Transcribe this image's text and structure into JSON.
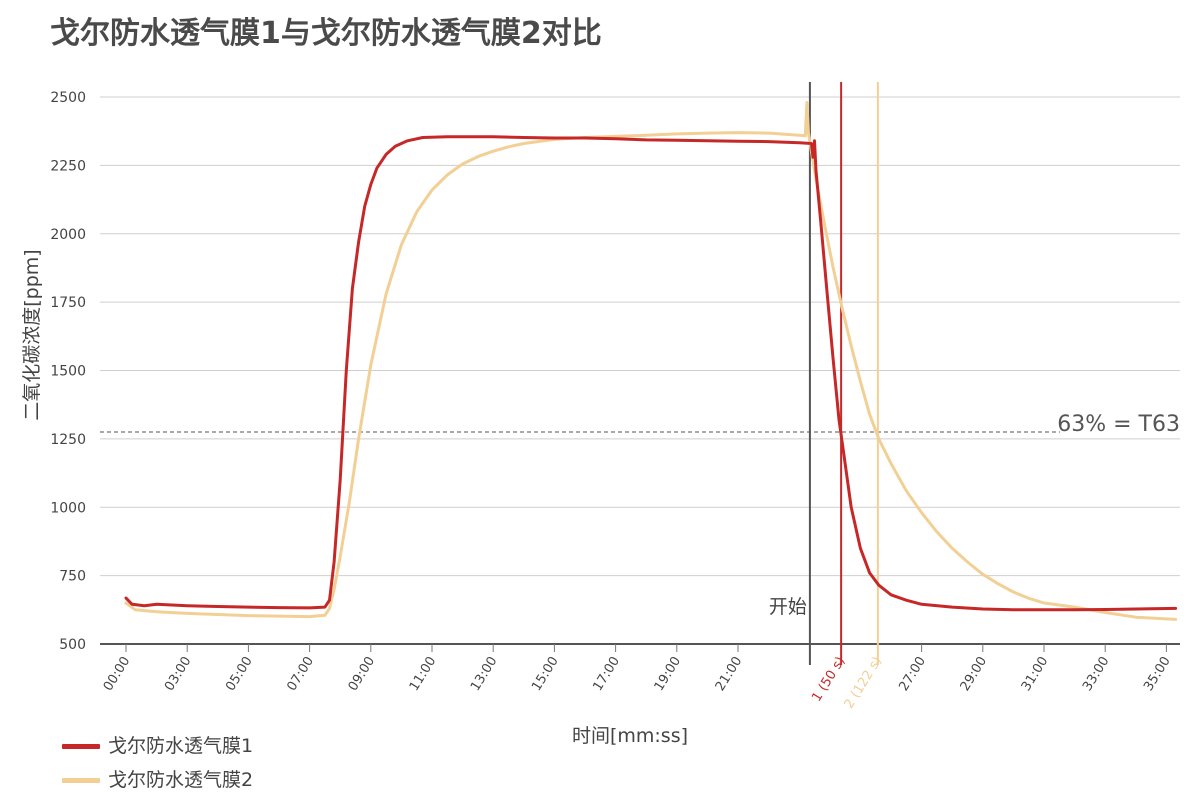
{
  "chart_data": {
    "type": "line",
    "title": "戈尔防水透气膜1与戈尔防水透气膜2对比",
    "xlabel": "时间[mm:ss]",
    "ylabel": "二氧化碳浓度[ppm]",
    "ylim": [
      500,
      2600
    ],
    "y_ticks": [
      500,
      750,
      1000,
      1250,
      1500,
      1750,
      2000,
      2250,
      2500
    ],
    "x_ticks": [
      {
        "label": "00:00",
        "x": 0
      },
      {
        "label": "03:00",
        "x": 2
      },
      {
        "label": "05:00",
        "x": 4
      },
      {
        "label": "07:00",
        "x": 6
      },
      {
        "label": "09:00",
        "x": 8
      },
      {
        "label": "11:00",
        "x": 10
      },
      {
        "label": "13:00",
        "x": 12
      },
      {
        "label": "15:00",
        "x": 14
      },
      {
        "label": "17:00",
        "x": 16
      },
      {
        "label": "19:00",
        "x": 18
      },
      {
        "label": "21:00",
        "x": 20
      },
      {
        "label": "1 (50 s)",
        "x": 23.37,
        "color": "#c62828"
      },
      {
        "label": "2 (122 s)",
        "x": 24.57,
        "color": "#f2cf95"
      },
      {
        "label": "27:00",
        "x": 26
      },
      {
        "label": "29:00",
        "x": 28
      },
      {
        "label": "31:00",
        "x": 30
      },
      {
        "label": "33:00",
        "x": 32
      },
      {
        "label": "35:00",
        "x": 34
      }
    ],
    "grid": "horizontal",
    "legend_position": "bottom-left",
    "series": [
      {
        "name": "戈尔防水透气膜1",
        "color": "#c62828",
        "points": [
          [
            0,
            668
          ],
          [
            0.2,
            645
          ],
          [
            0.6,
            640
          ],
          [
            1,
            645
          ],
          [
            2,
            640
          ],
          [
            3,
            637
          ],
          [
            4,
            635
          ],
          [
            5,
            633
          ],
          [
            6,
            632
          ],
          [
            6.5,
            635
          ],
          [
            6.65,
            660
          ],
          [
            6.8,
            800
          ],
          [
            7,
            1100
          ],
          [
            7.2,
            1500
          ],
          [
            7.4,
            1800
          ],
          [
            7.6,
            1970
          ],
          [
            7.8,
            2100
          ],
          [
            8,
            2180
          ],
          [
            8.2,
            2240
          ],
          [
            8.5,
            2290
          ],
          [
            8.8,
            2320
          ],
          [
            9.2,
            2340
          ],
          [
            9.7,
            2352
          ],
          [
            10.5,
            2355
          ],
          [
            12,
            2355
          ],
          [
            13,
            2352
          ],
          [
            14,
            2350
          ],
          [
            15,
            2350
          ],
          [
            16,
            2347
          ],
          [
            17,
            2343
          ],
          [
            18,
            2342
          ],
          [
            19,
            2340
          ],
          [
            20,
            2338
          ],
          [
            21,
            2337
          ],
          [
            22,
            2333
          ],
          [
            22.4,
            2330
          ],
          [
            22.45,
            2280
          ],
          [
            22.5,
            2340
          ],
          [
            22.55,
            2230
          ],
          [
            22.7,
            2050
          ],
          [
            22.9,
            1800
          ],
          [
            23.1,
            1550
          ],
          [
            23.3,
            1320
          ],
          [
            23.45,
            1200
          ],
          [
            23.7,
            1000
          ],
          [
            24,
            850
          ],
          [
            24.3,
            760
          ],
          [
            24.6,
            715
          ],
          [
            25,
            680
          ],
          [
            25.5,
            660
          ],
          [
            26,
            645
          ],
          [
            27,
            635
          ],
          [
            28,
            628
          ],
          [
            29,
            625
          ],
          [
            30,
            625
          ],
          [
            31,
            625
          ],
          [
            32,
            626
          ],
          [
            33,
            628
          ],
          [
            34.3,
            630
          ]
        ]
      },
      {
        "name": "戈尔防水透气膜2",
        "color": "#f2cf95",
        "points": [
          [
            0,
            650
          ],
          [
            0.3,
            625
          ],
          [
            1,
            618
          ],
          [
            2,
            612
          ],
          [
            3,
            608
          ],
          [
            4,
            604
          ],
          [
            5,
            602
          ],
          [
            6,
            600
          ],
          [
            6.5,
            605
          ],
          [
            6.65,
            630
          ],
          [
            6.8,
            700
          ],
          [
            7,
            820
          ],
          [
            7.3,
            1020
          ],
          [
            7.6,
            1250
          ],
          [
            8,
            1520
          ],
          [
            8.5,
            1780
          ],
          [
            9,
            1960
          ],
          [
            9.5,
            2080
          ],
          [
            10,
            2160
          ],
          [
            10.5,
            2215
          ],
          [
            11,
            2255
          ],
          [
            11.5,
            2282
          ],
          [
            12,
            2302
          ],
          [
            12.5,
            2318
          ],
          [
            13,
            2330
          ],
          [
            14,
            2345
          ],
          [
            15,
            2352
          ],
          [
            16,
            2356
          ],
          [
            17,
            2360
          ],
          [
            18,
            2365
          ],
          [
            19,
            2368
          ],
          [
            20,
            2370
          ],
          [
            21,
            2368
          ],
          [
            22,
            2360
          ],
          [
            22.2,
            2358
          ],
          [
            22.25,
            2480
          ],
          [
            22.3,
            2370
          ],
          [
            22.4,
            2300
          ],
          [
            22.55,
            2200
          ],
          [
            22.8,
            2050
          ],
          [
            23.1,
            1880
          ],
          [
            23.4,
            1730
          ],
          [
            23.7,
            1590
          ],
          [
            24,
            1460
          ],
          [
            24.3,
            1340
          ],
          [
            24.6,
            1250
          ],
          [
            25,
            1160
          ],
          [
            25.5,
            1060
          ],
          [
            26,
            980
          ],
          [
            26.5,
            910
          ],
          [
            27,
            850
          ],
          [
            27.5,
            800
          ],
          [
            28,
            755
          ],
          [
            28.5,
            720
          ],
          [
            29,
            690
          ],
          [
            29.5,
            667
          ],
          [
            30,
            650
          ],
          [
            31,
            635
          ],
          [
            32,
            615
          ],
          [
            33,
            598
          ],
          [
            34.3,
            590
          ]
        ]
      }
    ],
    "annotations": [
      {
        "type": "hline",
        "y": 1275,
        "style": "dashed",
        "label": "63% = T63"
      },
      {
        "type": "vline",
        "x": 22.35,
        "color": "#555555",
        "label": "开始"
      },
      {
        "type": "vline",
        "x": 23.37,
        "color": "#c62828"
      },
      {
        "type": "vline",
        "x": 24.57,
        "color": "#f2cf95"
      }
    ]
  }
}
